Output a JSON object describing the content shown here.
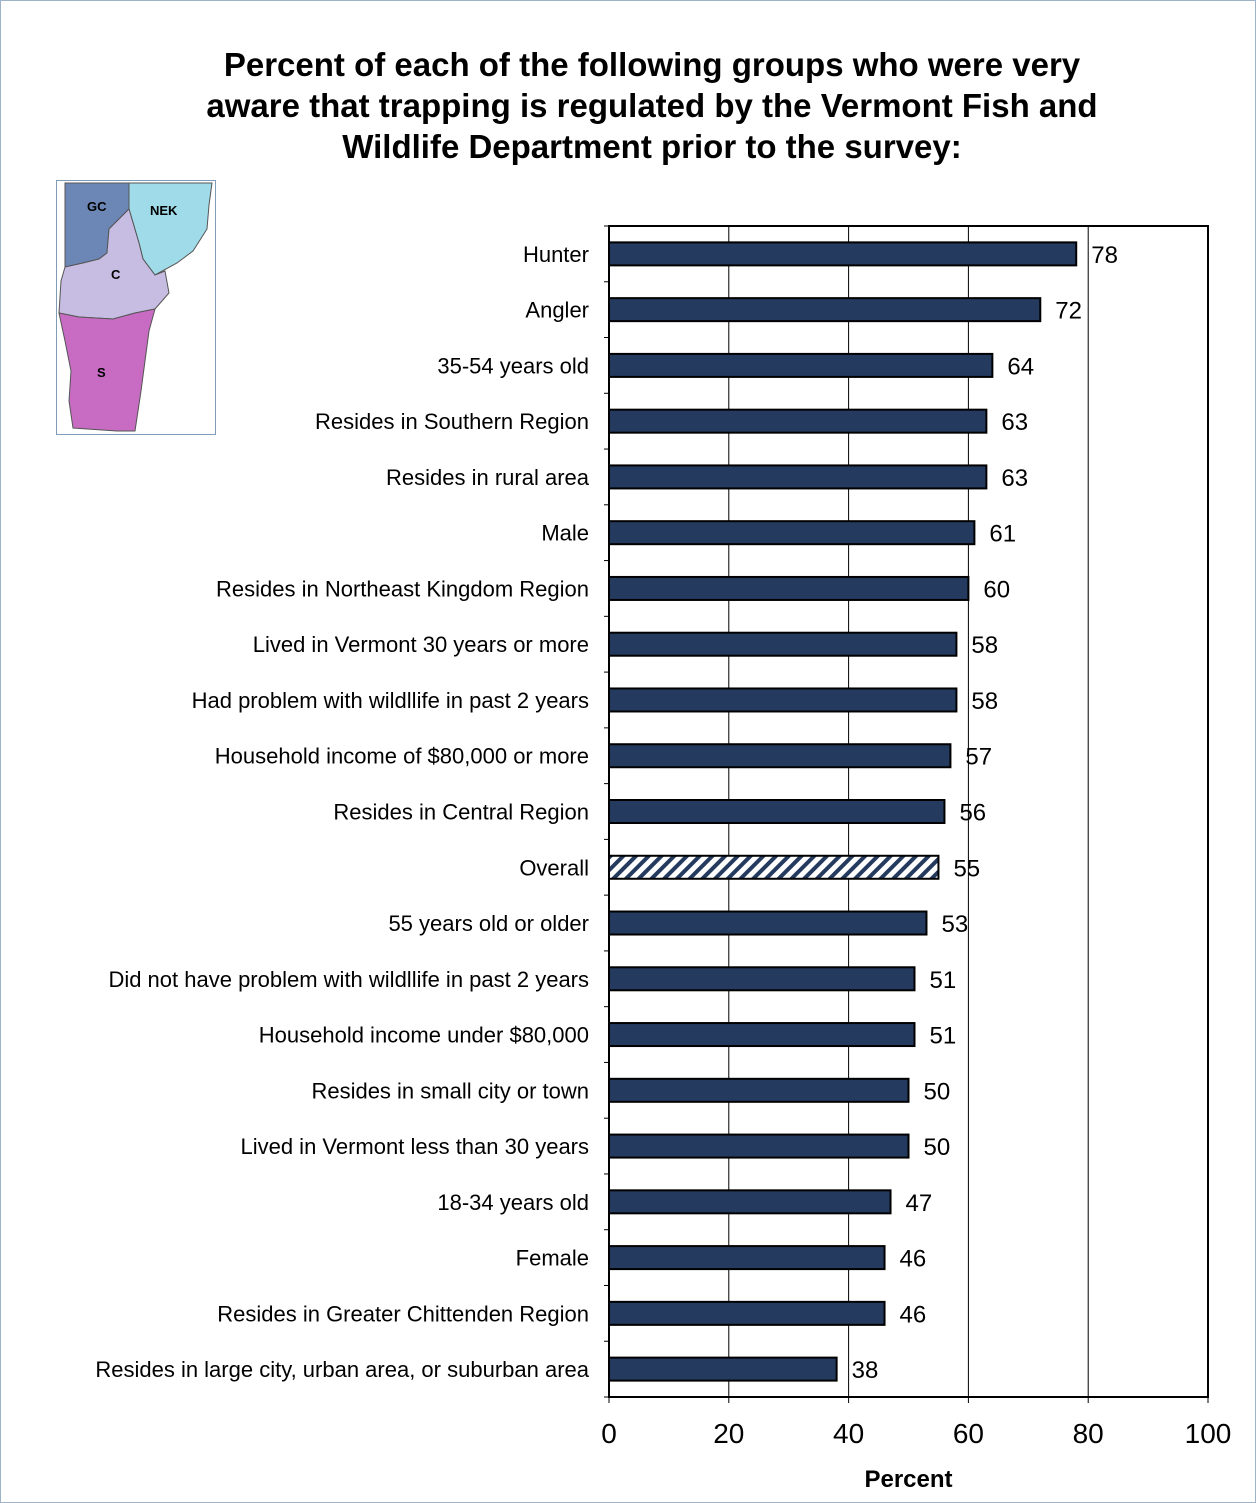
{
  "chart_data": {
    "type": "bar",
    "orientation": "horizontal",
    "title": "Percent of each of the following groups who were very aware that trapping is regulated by the Vermont Fish and Wildlife Department prior to the survey:",
    "title_lines": [
      "Percent of each of the following groups who were very",
      "aware that trapping is regulated by the Vermont Fish and",
      "Wildlife Department prior to the survey:"
    ],
    "xlabel": "Percent",
    "ylabel": "",
    "xlim": [
      0,
      100
    ],
    "xticks": [
      0,
      20,
      40,
      60,
      80,
      100
    ],
    "grid": true,
    "categories": [
      "Hunter",
      "Angler",
      "35-54 years old",
      "Resides in Southern Region",
      "Resides in rural area",
      "Male",
      "Resides in Northeast Kingdom Region",
      "Lived in Vermont 30 years or more",
      "Had problem with wildllife in past 2 years",
      "Household income of $80,000 or more",
      "Resides in Central Region",
      "Overall",
      "55 years old or older",
      "Did not have problem with wildllife in past 2 years",
      "Household income under $80,000",
      "Resides in small city or town",
      "Lived in Vermont less than 30 years",
      "18-34 years old",
      "Female",
      "Resides in Greater Chittenden Region",
      "Resides in large city, urban area, or suburban area"
    ],
    "values": [
      78,
      72,
      64,
      63,
      63,
      61,
      60,
      58,
      58,
      57,
      56,
      55,
      53,
      51,
      51,
      50,
      50,
      47,
      46,
      46,
      38
    ],
    "highlight": "Overall",
    "colors": {
      "bar": "#243a5e",
      "highlight_stripe": "#243a5e",
      "grid": "#000000"
    }
  },
  "map_inset": {
    "regions": [
      {
        "label": "GC",
        "color": "#6c87b6"
      },
      {
        "label": "NEK",
        "color": "#9fdbe8"
      },
      {
        "label": "C",
        "color": "#c7bde3"
      },
      {
        "label": "S",
        "color": "#c86cc3"
      }
    ]
  }
}
